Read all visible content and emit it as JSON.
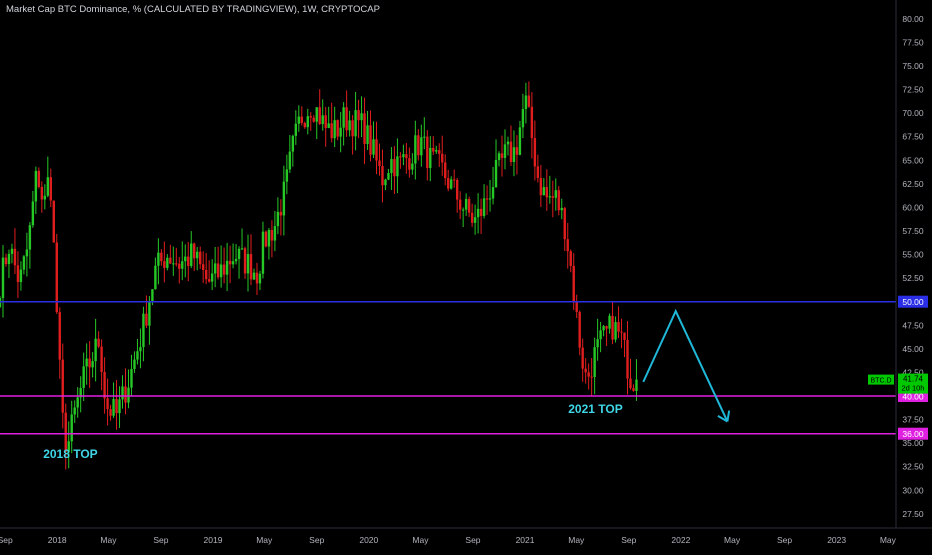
{
  "header": {
    "title": "Market Cap BTC Dominance, % (CALCULATED BY TRADINGVIEW), 1W, CRYPTOCAP"
  },
  "colors": {
    "background": "#000000",
    "up": "#26c826",
    "down": "#e01e1e",
    "blue_line": "#2a2ee6",
    "magenta_line": "#e020e0",
    "arrow": "#1fb8d8",
    "annotation": "#3fd6e6",
    "axis_text": "#b2b5be",
    "price_label": "#00c800"
  },
  "price_label": {
    "symbol": "BTC.D",
    "value": "41.74",
    "countdown": "2d 10h"
  },
  "chart_data": {
    "type": "candlestick",
    "title": "Market Cap BTC Dominance, % (CALCULATED BY TRADINGVIEW), 1W, CRYPTOCAP",
    "y_axis": {
      "range": [
        26,
        82
      ],
      "ticks": [
        "80.00",
        "77.50",
        "75.00",
        "72.50",
        "70.00",
        "67.50",
        "65.00",
        "62.50",
        "60.00",
        "57.50",
        "55.00",
        "52.50",
        "47.50",
        "45.00",
        "42.50",
        "37.50",
        "35.00",
        "32.50",
        "30.00",
        "27.50"
      ],
      "tick_values": [
        80,
        77.5,
        75,
        72.5,
        70,
        67.5,
        65,
        62.5,
        60,
        57.5,
        55,
        52.5,
        47.5,
        45,
        42.5,
        37.5,
        35,
        32.5,
        30,
        27.5
      ]
    },
    "x_axis": {
      "range": [
        "2017-08-20",
        "2023-05-20"
      ],
      "ticks": [
        {
          "label": "Sep",
          "date": "2017-09-01"
        },
        {
          "label": "2018",
          "date": "2018-01-01"
        },
        {
          "label": "May",
          "date": "2018-05-01"
        },
        {
          "label": "Sep",
          "date": "2018-09-01"
        },
        {
          "label": "2019",
          "date": "2019-01-01"
        },
        {
          "label": "May",
          "date": "2019-05-01"
        },
        {
          "label": "Sep",
          "date": "2019-09-01"
        },
        {
          "label": "2020",
          "date": "2020-01-01"
        },
        {
          "label": "May",
          "date": "2020-05-01"
        },
        {
          "label": "Sep",
          "date": "2020-09-01"
        },
        {
          "label": "2021",
          "date": "2021-01-01"
        },
        {
          "label": "May",
          "date": "2021-05-01"
        },
        {
          "label": "Sep",
          "date": "2021-09-01"
        },
        {
          "label": "2022",
          "date": "2022-01-01"
        },
        {
          "label": "May",
          "date": "2022-05-01"
        },
        {
          "label": "Sep",
          "date": "2022-09-01"
        },
        {
          "label": "2023",
          "date": "2023-01-01"
        },
        {
          "label": "May",
          "date": "2023-05-01"
        }
      ]
    },
    "horizontal_levels": [
      {
        "value": 50.0,
        "label": "50.00",
        "color": "#2a2ee6"
      },
      {
        "value": 40.0,
        "label": "40.00",
        "color": "#e020e0"
      },
      {
        "value": 36.0,
        "label": "36.00",
        "color": "#e020e0"
      }
    ],
    "annotations": [
      {
        "text": "2018 TOP",
        "date": "2018-02-01",
        "value": 33.4
      },
      {
        "text": "2021 TOP",
        "date": "2021-06-15",
        "value": 38.2
      }
    ],
    "projection_arrow": [
      {
        "date": "2021-10-05",
        "value": 41.5
      },
      {
        "date": "2021-12-20",
        "value": 49.0
      },
      {
        "date": "2022-04-20",
        "value": 37.3
      }
    ],
    "weekly_close_anchors": [
      {
        "date": "2017-08-20",
        "close": 52.0
      },
      {
        "date": "2017-09-10",
        "close": 56.0
      },
      {
        "date": "2017-10-05",
        "close": 52.0
      },
      {
        "date": "2017-10-25",
        "close": 56.0
      },
      {
        "date": "2017-11-15",
        "close": 64.0
      },
      {
        "date": "2017-12-01",
        "close": 60.0
      },
      {
        "date": "2017-12-15",
        "close": 64.0
      },
      {
        "date": "2017-12-28",
        "close": 52.0
      },
      {
        "date": "2018-01-05",
        "close": 44.0
      },
      {
        "date": "2018-01-15",
        "close": 36.5
      },
      {
        "date": "2018-01-25",
        "close": 34.5
      },
      {
        "date": "2018-02-10",
        "close": 38.0
      },
      {
        "date": "2018-03-05",
        "close": 42.0
      },
      {
        "date": "2018-04-10",
        "close": 46.0
      },
      {
        "date": "2018-04-25",
        "close": 39.0
      },
      {
        "date": "2018-05-20",
        "close": 38.0
      },
      {
        "date": "2018-06-20",
        "close": 42.0
      },
      {
        "date": "2018-07-20",
        "close": 47.0
      },
      {
        "date": "2018-08-20",
        "close": 53.5
      },
      {
        "date": "2018-09-15",
        "close": 55.0
      },
      {
        "date": "2018-10-15",
        "close": 54.0
      },
      {
        "date": "2018-11-15",
        "close": 55.0
      },
      {
        "date": "2018-12-20",
        "close": 52.0
      },
      {
        "date": "2019-01-15",
        "close": 53.0
      },
      {
        "date": "2019-02-20",
        "close": 55.0
      },
      {
        "date": "2019-03-25",
        "close": 54.0
      },
      {
        "date": "2019-04-15",
        "close": 53.0
      },
      {
        "date": "2019-05-01",
        "close": 56.5
      },
      {
        "date": "2019-05-25",
        "close": 58.0
      },
      {
        "date": "2019-06-20",
        "close": 62.0
      },
      {
        "date": "2019-07-05",
        "close": 66.0
      },
      {
        "date": "2019-07-25",
        "close": 69.5
      },
      {
        "date": "2019-08-20",
        "close": 71.0
      },
      {
        "date": "2019-09-05",
        "close": 70.0
      },
      {
        "date": "2019-09-20",
        "close": 68.5
      },
      {
        "date": "2019-10-15",
        "close": 68.0
      },
      {
        "date": "2019-11-05",
        "close": 69.5
      },
      {
        "date": "2019-12-01",
        "close": 69.0
      },
      {
        "date": "2019-12-20",
        "close": 68.5
      },
      {
        "date": "2020-01-10",
        "close": 66.0
      },
      {
        "date": "2020-02-01",
        "close": 63.0
      },
      {
        "date": "2020-02-20",
        "close": 65.0
      },
      {
        "date": "2020-03-10",
        "close": 64.5
      },
      {
        "date": "2020-04-05",
        "close": 65.5
      },
      {
        "date": "2020-05-01",
        "close": 67.0
      },
      {
        "date": "2020-05-25",
        "close": 65.0
      },
      {
        "date": "2020-06-20",
        "close": 64.0
      },
      {
        "date": "2020-07-15",
        "close": 62.0
      },
      {
        "date": "2020-08-10",
        "close": 60.0
      },
      {
        "date": "2020-09-05",
        "close": 58.5
      },
      {
        "date": "2020-09-25",
        "close": 60.0
      },
      {
        "date": "2020-10-20",
        "close": 63.0
      },
      {
        "date": "2020-11-15",
        "close": 65.5
      },
      {
        "date": "2020-12-10",
        "close": 66.0
      },
      {
        "date": "2021-01-01",
        "close": 71.5
      },
      {
        "date": "2021-01-15",
        "close": 68.0
      },
      {
        "date": "2021-02-01",
        "close": 63.0
      },
      {
        "date": "2021-02-20",
        "close": 61.0
      },
      {
        "date": "2021-03-15",
        "close": 61.0
      },
      {
        "date": "2021-04-05",
        "close": 58.0
      },
      {
        "date": "2021-04-20",
        "close": 53.0
      },
      {
        "date": "2021-05-05",
        "close": 47.0
      },
      {
        "date": "2021-05-15",
        "close": 44.0
      },
      {
        "date": "2021-05-25",
        "close": 41.5
      },
      {
        "date": "2021-06-10",
        "close": 44.0
      },
      {
        "date": "2021-06-25",
        "close": 45.5
      },
      {
        "date": "2021-07-10",
        "close": 46.5
      },
      {
        "date": "2021-07-25",
        "close": 47.5
      },
      {
        "date": "2021-08-15",
        "close": 46.0
      },
      {
        "date": "2021-09-05",
        "close": 42.0
      },
      {
        "date": "2021-09-20",
        "close": 41.74
      }
    ]
  }
}
